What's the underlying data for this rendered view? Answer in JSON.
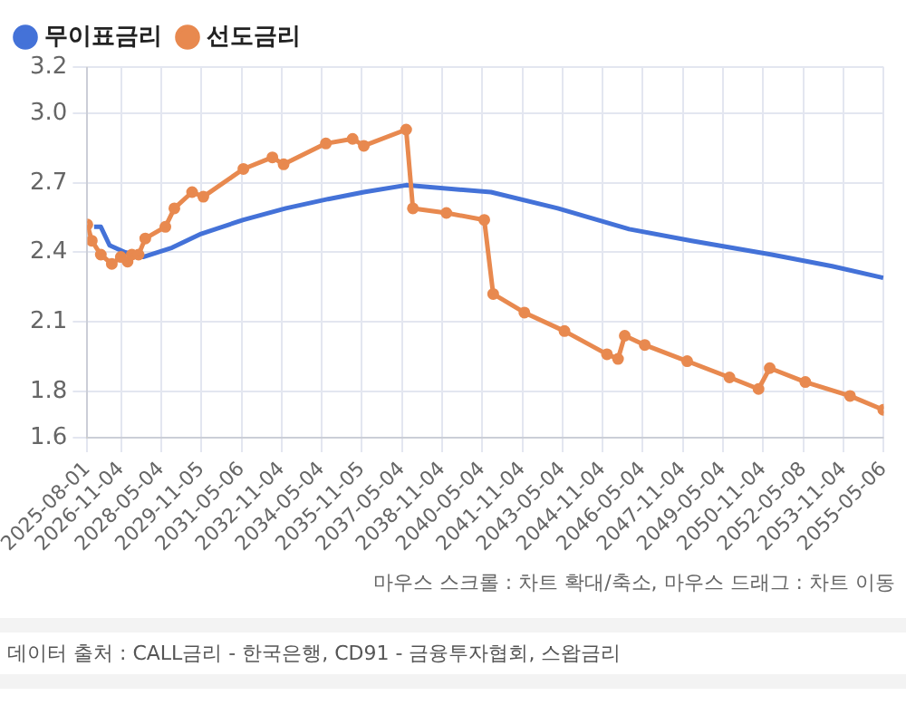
{
  "chart_data": {
    "type": "line",
    "x": [
      "2025-08-01",
      "2025-10-01",
      "2026-02-01",
      "2026-07-01",
      "2026-11-01",
      "2027-02-01",
      "2027-04-01",
      "2027-07-01",
      "2027-10-01",
      "2028-07-01",
      "2028-11-01",
      "2029-07-01",
      "2029-12-01",
      "2031-06-01",
      "2032-07-01",
      "2032-12-01",
      "2034-07-01",
      "2035-07-01",
      "2035-12-01",
      "2037-07-01",
      "2037-10-01",
      "2039-01-01",
      "2040-06-01",
      "2040-10-01",
      "2041-12-01",
      "2043-06-01",
      "2045-01-01",
      "2045-06-01",
      "2045-09-01",
      "2046-06-01",
      "2048-01-01",
      "2049-08-01",
      "2050-09-01",
      "2051-02-01",
      "2052-06-01",
      "2054-02-01",
      "2055-05-01"
    ],
    "series": [
      {
        "name": "무이표금리",
        "color": "#4472d8",
        "marker": "none",
        "x": [
          "2025-11-01",
          "2026-02-01",
          "2026-06-01",
          "2027-01-01",
          "2027-09-01",
          "2028-10-01",
          "2029-11-01",
          "2031-06-01",
          "2033-01-01",
          "2034-08-01",
          "2035-12-01",
          "2037-07-01",
          "2040-09-01",
          "2043-03-01",
          "2045-11-01",
          "2048-03-01",
          "2051-03-01",
          "2053-06-01",
          "2055-05-01"
        ],
        "values": [
          2.51,
          2.51,
          2.43,
          2.4,
          2.38,
          2.42,
          2.48,
          2.54,
          2.59,
          2.63,
          2.66,
          2.69,
          2.66,
          2.59,
          2.5,
          2.45,
          2.39,
          2.34,
          2.29
        ]
      },
      {
        "name": "선도금리",
        "color": "#e8894f",
        "marker": "circle",
        "values": [
          2.52,
          2.45,
          2.39,
          2.35,
          2.38,
          2.36,
          2.39,
          2.39,
          2.46,
          2.51,
          2.59,
          2.66,
          2.64,
          2.76,
          2.81,
          2.78,
          2.87,
          2.89,
          2.86,
          2.93,
          2.59,
          2.57,
          2.54,
          2.22,
          2.14,
          2.06,
          1.96,
          1.94,
          2.04,
          2.0,
          1.93,
          1.86,
          1.81,
          1.9,
          1.84,
          1.78,
          1.72
        ]
      }
    ],
    "xlim": [
      "2025-08-01",
      "2055-05-06"
    ],
    "xticks": [
      "2025-08-01",
      "2026-11-04",
      "2028-05-04",
      "2029-11-05",
      "2031-05-06",
      "2032-11-04",
      "2034-05-04",
      "2035-11-05",
      "2037-05-04",
      "2038-11-04",
      "2040-05-04",
      "2041-11-04",
      "2043-05-04",
      "2044-11-04",
      "2046-05-04",
      "2047-11-04",
      "2049-05-04",
      "2050-11-04",
      "2052-05-08",
      "2053-11-04",
      "2055-05-06"
    ],
    "ylim": [
      1.6,
      3.2
    ],
    "yticks": [
      1.6,
      1.8,
      2.1,
      2.4,
      2.7,
      {
        "value": 3,
        "label": "3.0"
      },
      3.2
    ],
    "grid": true,
    "legend": "top left",
    "annotations": [
      "마우스 스크롤 : 차트 확대/축소, 마우스 드래그 : 차트 이동",
      "데이터 출처 : CALL금리 - 한국은행, CD91 - 금융투자협회, 스왑금리"
    ]
  }
}
